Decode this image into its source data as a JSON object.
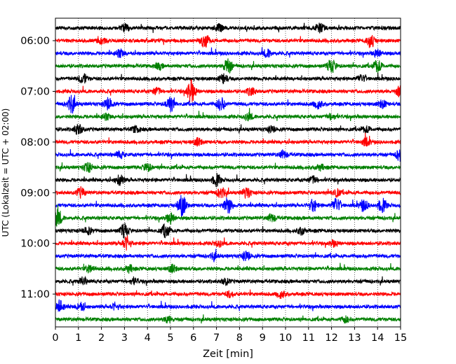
{
  "chart_data": {
    "type": "line",
    "title": "",
    "xlabel": "Zeit  [min]",
    "ylabel": "UTC (Lokalzeit = UTC + 02:00)",
    "xlim": [
      0,
      15
    ],
    "x_ticks": [
      "0",
      "1",
      "2",
      "3",
      "4",
      "5",
      "6",
      "7",
      "8",
      "9",
      "10",
      "11",
      "12",
      "13",
      "14",
      "15"
    ],
    "y_ticks": [
      "06:00",
      "07:00",
      "08:00",
      "09:00",
      "10:00",
      "11:00"
    ],
    "grid": "vertical dotted lines at each minute",
    "legend": "none",
    "trace_start": "05:45",
    "trace_interval_min": 15,
    "trace_count": 24,
    "trace_colors": [
      "#000000",
      "#ff0000",
      "#0000ff",
      "#008000"
    ],
    "series": [
      {
        "start": "05:45",
        "color": "#000000",
        "bursts": [
          {
            "x": 3,
            "a": 5
          },
          {
            "x": 7.1,
            "a": 6
          },
          {
            "x": 11.5,
            "a": 6
          }
        ]
      },
      {
        "start": "06:00",
        "color": "#ff0000",
        "bursts": [
          {
            "x": 6.5,
            "a": 10
          },
          {
            "x": 13.7,
            "a": 9
          },
          {
            "x": 2,
            "a": 4
          }
        ]
      },
      {
        "start": "06:15",
        "color": "#0000ff",
        "bursts": [
          {
            "x": 2.8,
            "a": 5
          },
          {
            "x": 9.2,
            "a": 5
          },
          {
            "x": 14,
            "a": 5
          }
        ]
      },
      {
        "start": "06:30",
        "color": "#008000",
        "bursts": [
          {
            "x": 7.5,
            "a": 10
          },
          {
            "x": 12,
            "a": 9
          },
          {
            "x": 14,
            "a": 8
          },
          {
            "x": 4.5,
            "a": 4
          }
        ]
      },
      {
        "start": "06:45",
        "color": "#000000",
        "bursts": [
          {
            "x": 1.2,
            "a": 7
          },
          {
            "x": 7.3,
            "a": 6
          },
          {
            "x": 13.3,
            "a": 5
          }
        ]
      },
      {
        "start": "07:00",
        "color": "#ff0000",
        "bursts": [
          {
            "x": 5.9,
            "a": 15
          },
          {
            "x": 4.4,
            "a": 5
          },
          {
            "x": 15,
            "a": 8
          },
          {
            "x": 8.5,
            "a": 5
          }
        ]
      },
      {
        "start": "07:15",
        "color": "#0000ff",
        "bursts": [
          {
            "x": 0.7,
            "a": 11
          },
          {
            "x": 2.3,
            "a": 8
          },
          {
            "x": 5,
            "a": 10
          },
          {
            "x": 7.2,
            "a": 9
          },
          {
            "x": 11.4,
            "a": 6
          },
          {
            "x": 14.2,
            "a": 5
          }
        ]
      },
      {
        "start": "07:30",
        "color": "#008000",
        "bursts": [
          {
            "x": 2.2,
            "a": 4
          },
          {
            "x": 8.4,
            "a": 5
          },
          {
            "x": 12,
            "a": 4
          }
        ]
      },
      {
        "start": "07:45",
        "color": "#000000",
        "bursts": [
          {
            "x": 1,
            "a": 7
          },
          {
            "x": 3.5,
            "a": 4
          },
          {
            "x": 9.4,
            "a": 4
          },
          {
            "x": 13.5,
            "a": 4
          }
        ]
      },
      {
        "start": "08:00",
        "color": "#ff0000",
        "bursts": [
          {
            "x": 6.2,
            "a": 5
          },
          {
            "x": 13.5,
            "a": 5
          }
        ]
      },
      {
        "start": "08:15",
        "color": "#0000ff",
        "bursts": [
          {
            "x": 15,
            "a": 10
          },
          {
            "x": 9.9,
            "a": 5
          },
          {
            "x": 2.8,
            "a": 4
          }
        ]
      },
      {
        "start": "08:30",
        "color": "#008000",
        "bursts": [
          {
            "x": 1.4,
            "a": 6
          },
          {
            "x": 4,
            "a": 5
          },
          {
            "x": 11.5,
            "a": 4
          }
        ]
      },
      {
        "start": "08:45",
        "color": "#000000",
        "bursts": [
          {
            "x": 2.8,
            "a": 7
          },
          {
            "x": 7,
            "a": 8
          },
          {
            "x": 11.2,
            "a": 5
          }
        ]
      },
      {
        "start": "09:00",
        "color": "#ff0000",
        "bursts": [
          {
            "x": 1.1,
            "a": 7
          },
          {
            "x": 7.2,
            "a": 7
          },
          {
            "x": 8.3,
            "a": 7
          },
          {
            "x": 12.2,
            "a": 5
          }
        ]
      },
      {
        "start": "09:15",
        "color": "#0000ff",
        "bursts": [
          {
            "x": 5.5,
            "a": 14
          },
          {
            "x": 7.5,
            "a": 11
          },
          {
            "x": 11.2,
            "a": 8
          },
          {
            "x": 12.2,
            "a": 10
          },
          {
            "x": 13.4,
            "a": 8
          },
          {
            "x": 14.2,
            "a": 9
          }
        ]
      },
      {
        "start": "09:30",
        "color": "#008000",
        "bursts": [
          {
            "x": 0.1,
            "a": 12
          },
          {
            "x": 5,
            "a": 7
          },
          {
            "x": 9.4,
            "a": 5
          }
        ]
      },
      {
        "start": "09:45",
        "color": "#000000",
        "bursts": [
          {
            "x": 1.4,
            "a": 5
          },
          {
            "x": 3,
            "a": 9
          },
          {
            "x": 4.8,
            "a": 9
          },
          {
            "x": 10.7,
            "a": 5
          }
        ]
      },
      {
        "start": "10:00",
        "color": "#ff0000",
        "bursts": [
          {
            "x": 3.1,
            "a": 9
          },
          {
            "x": 7.1,
            "a": 4
          },
          {
            "x": 12.1,
            "a": 4
          }
        ]
      },
      {
        "start": "10:15",
        "color": "#0000ff",
        "bursts": [
          {
            "x": 8.3,
            "a": 6
          },
          {
            "x": 6.9,
            "a": 4
          }
        ]
      },
      {
        "start": "10:30",
        "color": "#008000",
        "bursts": [
          {
            "x": 1.5,
            "a": 5
          },
          {
            "x": 3.2,
            "a": 5
          },
          {
            "x": 5.1,
            "a": 5
          }
        ]
      },
      {
        "start": "10:45",
        "color": "#000000",
        "bursts": [
          {
            "x": 1.2,
            "a": 5
          },
          {
            "x": 3.4,
            "a": 4
          },
          {
            "x": 7.4,
            "a": 4
          }
        ]
      },
      {
        "start": "11:00",
        "color": "#ff0000",
        "bursts": [
          {
            "x": 7.6,
            "a": 4
          },
          {
            "x": 9.8,
            "a": 5
          }
        ]
      },
      {
        "start": "11:15",
        "color": "#0000ff",
        "bursts": [
          {
            "x": 0.2,
            "a": 7
          },
          {
            "x": 1.1,
            "a": 6
          },
          {
            "x": 2.6,
            "a": 4
          }
        ]
      },
      {
        "start": "11:30",
        "color": "#008000",
        "bursts": [
          {
            "x": 4.9,
            "a": 4
          },
          {
            "x": 12.6,
            "a": 4
          }
        ]
      }
    ]
  }
}
